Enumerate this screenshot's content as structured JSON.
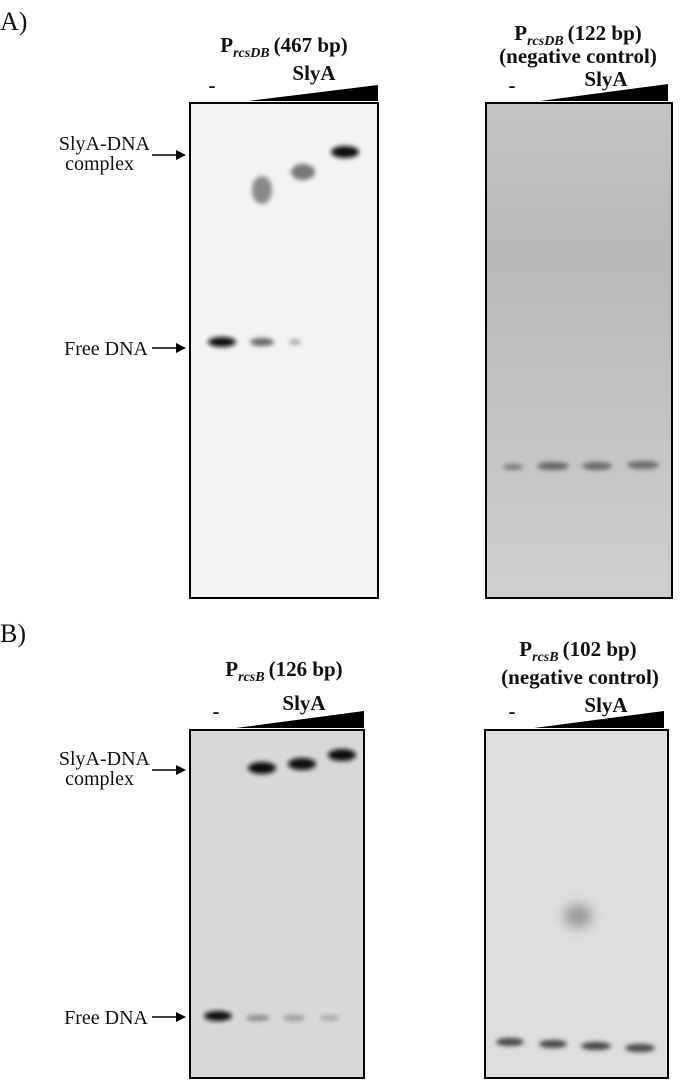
{
  "panels": [
    {
      "label": "A)",
      "gels": [
        {
          "title": {
            "letter": "P",
            "subscript": "rcsDB",
            "size": "(467 bp)"
          },
          "lanes": {
            "control": "-",
            "protein": "SlyA"
          },
          "markers": [
            {
              "lines": [
                "SlyA-DNA",
                "complex"
              ]
            },
            {
              "lines": [
                "Free DNA"
              ]
            }
          ]
        },
        {
          "title": {
            "letter": "P",
            "subscript": "rcsDB",
            "size": "(122 bp)"
          },
          "note": "(negative control)",
          "lanes": {
            "control": "-",
            "protein": "SlyA"
          }
        }
      ]
    },
    {
      "label": "B)",
      "gels": [
        {
          "title": {
            "letter": "P",
            "subscript": "rcsB",
            "size": "(126 bp)"
          },
          "lanes": {
            "control": "-",
            "protein": "SlyA"
          },
          "markers": [
            {
              "lines": [
                "SlyA-DNA",
                "complex"
              ]
            },
            {
              "lines": [
                "Free DNA"
              ]
            }
          ]
        },
        {
          "title": {
            "letter": "P",
            "subscript": "rcsB",
            "size": "(102 bp)"
          },
          "note": "(negative control)",
          "lanes": {
            "control": "-",
            "protein": "SlyA"
          }
        }
      ]
    }
  ]
}
